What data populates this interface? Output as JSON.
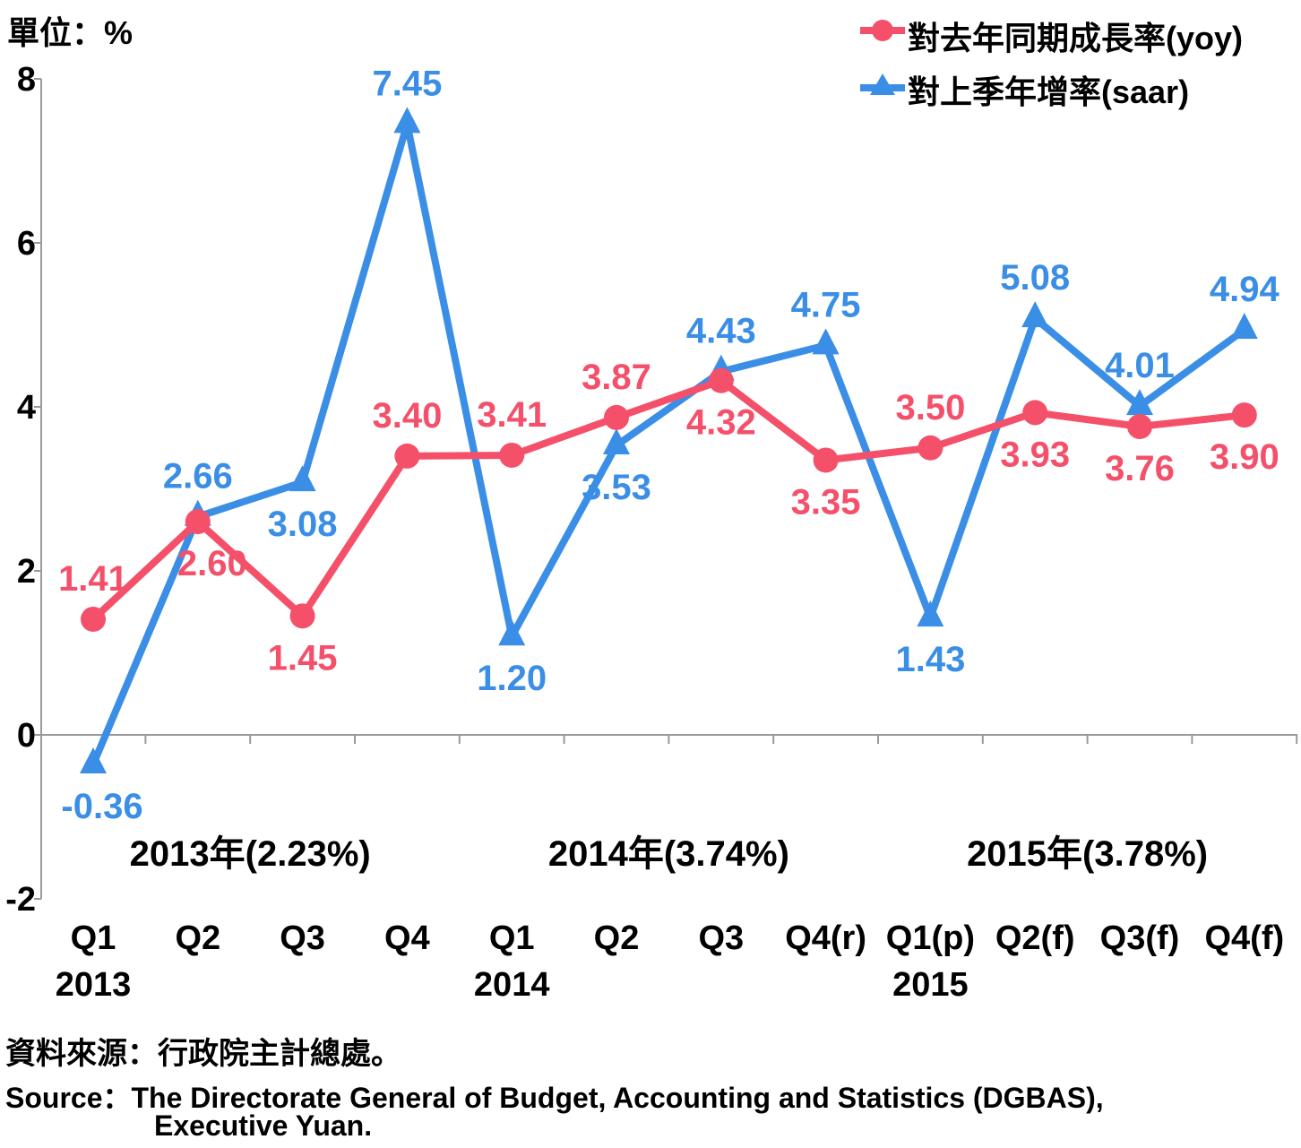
{
  "unit_label": "單位：%",
  "source_zh": "資料來源：行政院主計總處。",
  "source_en_line1": "Source：The Directorate General of Budget, Accounting and Statistics (DGBAS),",
  "source_en_line2": "Executive Yuan.",
  "colors": {
    "yoy": "#f4506a",
    "saar": "#3a8ee6"
  },
  "chart_data": {
    "type": "line",
    "categories": [
      "Q1",
      "Q2",
      "Q3",
      "Q4",
      "Q1",
      "Q2",
      "Q3",
      "Q4(r)",
      "Q1(p)",
      "Q2(f)",
      "Q3(f)",
      "Q4(f)"
    ],
    "year_labels": [
      "2013",
      "",
      "",
      "",
      "2014",
      "",
      "",
      "",
      "2015",
      "",
      "",
      ""
    ],
    "annual_labels": [
      "2013年(2.23%)",
      "2014年(3.74%)",
      "2015年(3.78%)"
    ],
    "ylim": [
      -2,
      8
    ],
    "yticks": [
      -2,
      0,
      2,
      4,
      6,
      8
    ],
    "grid": false,
    "legend_position": "top-right",
    "series": [
      {
        "name": "對去年同期成長率(yoy)",
        "marker": "circle",
        "values": [
          1.41,
          2.6,
          1.45,
          3.4,
          3.41,
          3.87,
          4.32,
          3.35,
          3.5,
          3.93,
          3.76,
          3.9
        ],
        "labels": [
          "1.41",
          "2.60",
          "1.45",
          "3.40",
          "3.41",
          "3.87",
          "4.32",
          "3.35",
          "3.50",
          "3.93",
          "3.76",
          "3.90"
        ]
      },
      {
        "name": "對上季年增率(saar)",
        "marker": "triangle",
        "values": [
          -0.36,
          2.66,
          3.08,
          7.45,
          1.2,
          3.53,
          4.43,
          4.75,
          1.43,
          5.08,
          4.01,
          4.94
        ],
        "labels": [
          "-0.36",
          "2.66",
          "3.08",
          "7.45",
          "1.20",
          "3.53",
          "4.43",
          "4.75",
          "1.43",
          "5.08",
          "4.01",
          "4.94"
        ]
      }
    ]
  }
}
